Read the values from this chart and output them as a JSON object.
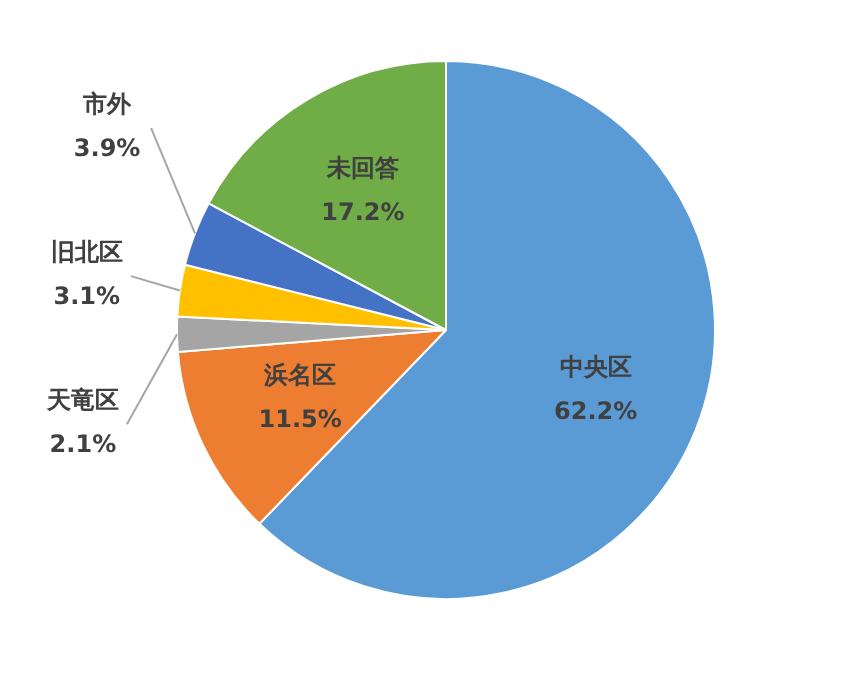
{
  "chart_data": {
    "type": "pie",
    "categories": [
      "中央区",
      "浜名区",
      "天竜区",
      "旧北区",
      "市外",
      "未回答"
    ],
    "values": [
      62.2,
      11.5,
      2.1,
      3.1,
      3.9,
      17.2
    ],
    "colors": [
      "#5b9bd5",
      "#ed7d31",
      "#a5a5a5",
      "#ffc000",
      "#4472c4",
      "#70ad47"
    ],
    "value_labels": [
      "62.2%",
      "11.5%",
      "2.1%",
      "3.1%",
      "3.9%",
      "17.2%"
    ],
    "legend": false
  }
}
